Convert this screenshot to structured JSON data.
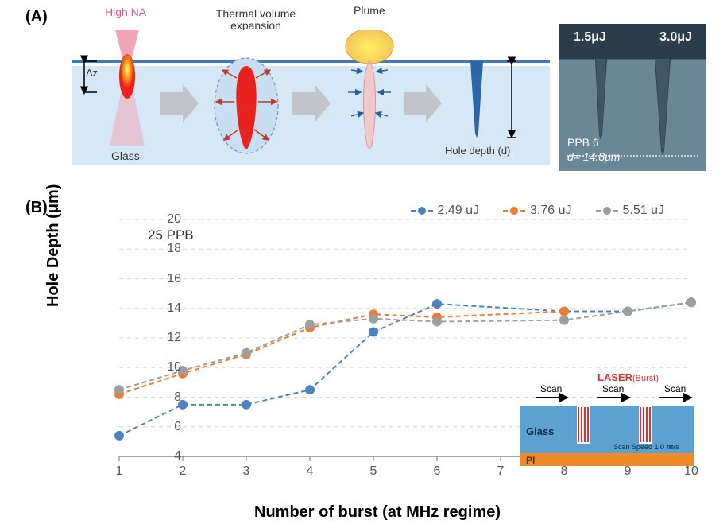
{
  "panelA": {
    "label": "(A)",
    "high_na": "High NA",
    "delta_z": "Δz",
    "thermal": "Thermal volume\nexpansion",
    "plume": "Plume",
    "hole_depth": "Hole depth (d)",
    "glass": "Glass",
    "micrograph": {
      "e1": "1.5μJ",
      "e2": "3.0μJ",
      "ppb": "PPB 6",
      "d": "d= 14.8μm"
    },
    "colors": {
      "glass_bg": "#d6e8f5",
      "surface": "#3a7bbf",
      "beam_pink": "#f7a9bb",
      "hot_red": "#e8221f",
      "hot_orange": "#f7b417",
      "hot_yellow": "#ffff66",
      "plume_outer": "#f8d887",
      "plume_inner": "#ffef61",
      "hole_blue": "#2b67a8",
      "arrow_gray": "#c1c5c9"
    }
  },
  "panelB": {
    "label": "(B)",
    "ppb_note": "25 PPB",
    "xlabel": "Number of burst (at MHz regime)",
    "ylabel": "Hole Depth (μm)",
    "xlim": [
      1,
      10
    ],
    "ylim": [
      4,
      20
    ],
    "xtick_step": 1,
    "ytick_step": 2,
    "grid_color": "#d7d7d7",
    "axis_color": "#888888",
    "background": "#ffffff",
    "marker_size": 6,
    "line_width": 2,
    "line_dash": "6,4",
    "legend": [
      {
        "label": "2.49 uJ",
        "color": "#4f81bd"
      },
      {
        "label": "3.76 uJ",
        "color": "#ed7d31"
      },
      {
        "label": "5.51 uJ",
        "color": "#9e9e9e"
      }
    ],
    "series": [
      {
        "name": "2.49 uJ",
        "color": "#4f81bd",
        "x": [
          1,
          2,
          3,
          4,
          5,
          6,
          8,
          9,
          10
        ],
        "y": [
          5.4,
          7.5,
          7.5,
          8.5,
          12.4,
          14.3,
          13.8,
          13.8,
          14.4
        ]
      },
      {
        "name": "3.76 uJ",
        "color": "#ed7d31",
        "x": [
          1,
          2,
          3,
          4,
          5,
          6,
          8
        ],
        "y": [
          8.2,
          9.6,
          10.9,
          12.7,
          13.6,
          13.4,
          13.8
        ]
      },
      {
        "name": "5.51 uJ",
        "color": "#9e9e9e",
        "x": [
          1,
          2,
          3,
          4,
          5,
          6,
          8,
          9,
          10
        ],
        "y": [
          8.5,
          9.8,
          11.0,
          12.9,
          13.3,
          13.1,
          13.2,
          13.8,
          14.4
        ]
      }
    ],
    "inset": {
      "laser": "LASER",
      "burst": "(Burst)",
      "scan": "Scan",
      "glass": "Glass",
      "pi": "PI",
      "scan_speed": "Scan Speed 1.0 ㎜/s",
      "glass_color": "#5da2cf",
      "pi_color": "#ed8b2d",
      "laser_color": "#e02f2f"
    }
  }
}
